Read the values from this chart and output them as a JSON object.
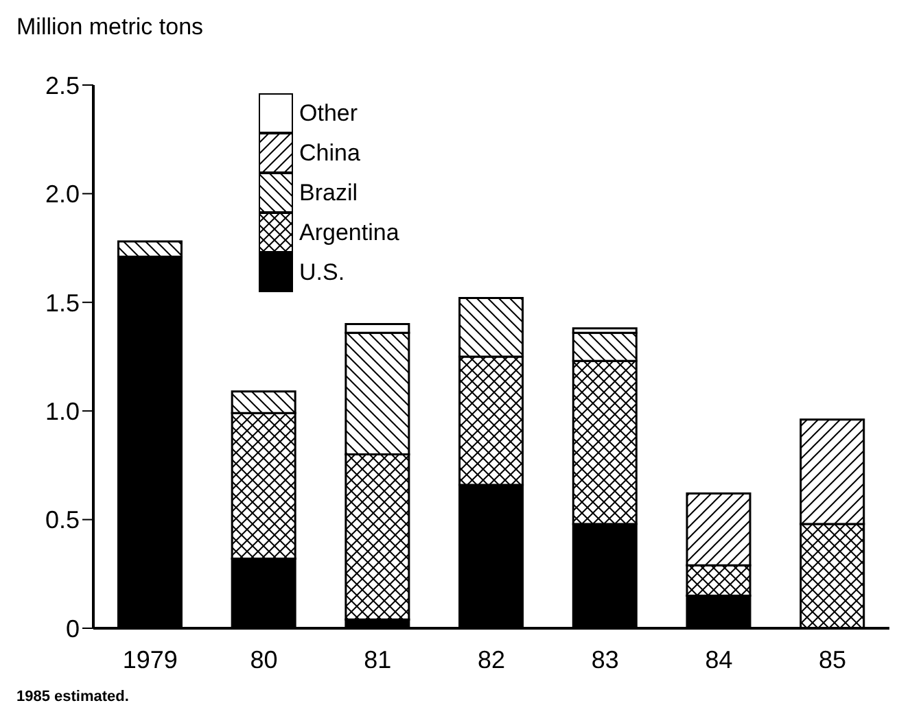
{
  "chart_data": {
    "type": "bar",
    "stacked": true,
    "ylabel": "Million metric tons",
    "annotations": [
      "1985 estimated."
    ],
    "categories": [
      "1979",
      "80",
      "81",
      "82",
      "83",
      "84",
      "85"
    ],
    "series": [
      {
        "name": "U.S.",
        "color": "#000000",
        "values": [
          1.71,
          0.32,
          0.04,
          0.66,
          0.48,
          0.15,
          null
        ]
      },
      {
        "name": "Argentina",
        "color": "#000000",
        "values": [
          null,
          0.67,
          0.76,
          0.59,
          0.75,
          0.14,
          0.48
        ]
      },
      {
        "name": "Brazil",
        "color": "#000000",
        "values": [
          0.07,
          0.1,
          0.56,
          0.27,
          0.13,
          null,
          null
        ]
      },
      {
        "name": "China",
        "color": "#000000",
        "values": [
          null,
          null,
          null,
          null,
          null,
          0.33,
          0.48
        ]
      },
      {
        "name": "Other",
        "color": "#ffffff",
        "values": [
          null,
          null,
          0.04,
          null,
          0.02,
          null,
          null
        ]
      }
    ],
    "ylim": [
      0,
      2.5
    ],
    "yticks": [
      0,
      0.5,
      {
        "value": 1,
        "label": "1.0"
      },
      1.5,
      {
        "value": 2,
        "label": "2.0"
      },
      2.5
    ],
    "grid": false,
    "legend": "top left"
  }
}
